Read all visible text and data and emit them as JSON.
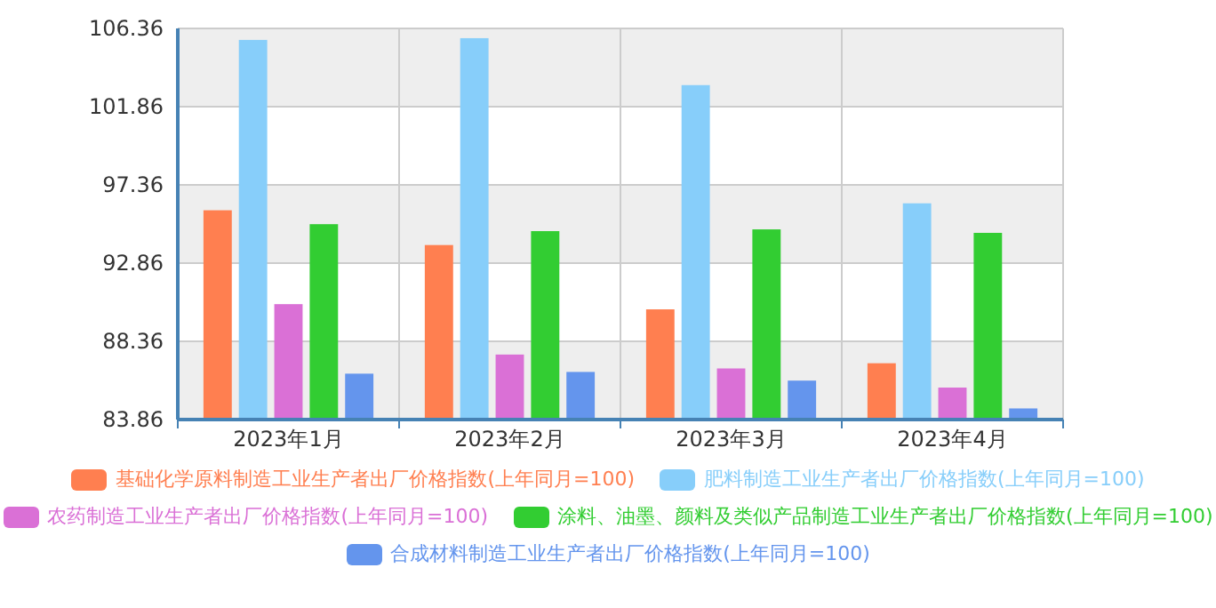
{
  "chart_data": {
    "type": "bar",
    "categories": [
      "2023年1月",
      "2023年2月",
      "2023年3月",
      "2023年4月"
    ],
    "series": [
      {
        "name": "基础化学原料制造工业生产者出厂价格指数(上年同月=100)",
        "color": "#ff7f50",
        "values": [
          95.9,
          93.9,
          90.2,
          87.1
        ]
      },
      {
        "name": "肥料制造工业生产者出厂价格指数(上年同月=100)",
        "color": "#87cefa",
        "values": [
          105.7,
          105.8,
          103.1,
          96.3
        ]
      },
      {
        "name": "农药制造工业生产者出厂价格指数(上年同月=100)",
        "color": "#da70d6",
        "values": [
          90.5,
          87.6,
          86.8,
          85.7
        ]
      },
      {
        "name": "涂料、油墨、颜料及类似产品制造工业生产者出厂价格指数(上年同月=100)",
        "color": "#32cd32",
        "values": [
          95.1,
          94.7,
          94.8,
          94.6
        ]
      },
      {
        "name": "合成材料制造工业生产者出厂价格指数(上年同月=100)",
        "color": "#6495ed",
        "values": [
          86.5,
          86.6,
          86.1,
          84.5
        ]
      }
    ],
    "ylim": [
      83.86,
      106.36
    ],
    "yticks": [
      83.86,
      88.36,
      92.86,
      97.36,
      101.86,
      106.36
    ],
    "grid": true,
    "legend": "bottom"
  }
}
